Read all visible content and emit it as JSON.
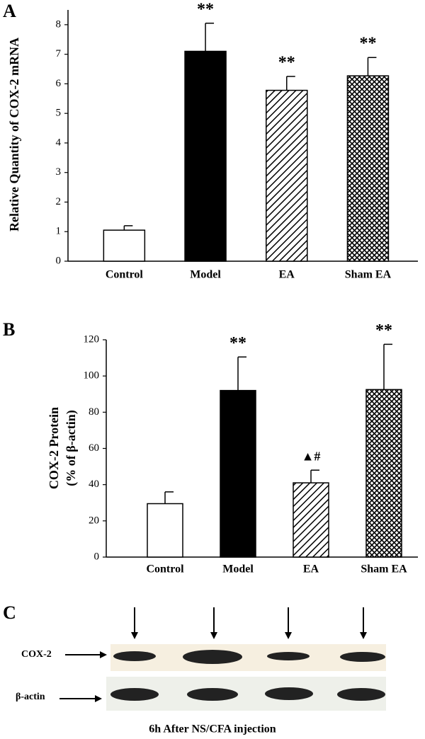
{
  "chart_data": [
    {
      "type": "bar",
      "panel": "A",
      "ylabel": [
        "Relative Quantity of COX-2 mRNA"
      ],
      "categories": [
        "Control",
        "Model",
        "EA",
        "Sham EA"
      ],
      "values": [
        1.05,
        7.1,
        5.78,
        6.27
      ],
      "errors": [
        0.15,
        0.95,
        0.47,
        0.62
      ],
      "annotations": [
        null,
        "**",
        "**",
        "**"
      ],
      "patterns": [
        "white",
        "black",
        "hatch",
        "cross"
      ],
      "ylim": [
        0,
        8.5
      ],
      "yticks": [
        0,
        1,
        2,
        3,
        4,
        5,
        6,
        7,
        8
      ]
    },
    {
      "type": "bar",
      "panel": "B",
      "ylabel": [
        "COX-2 Protein",
        "(% of β-actin)"
      ],
      "categories": [
        "Control",
        "Model",
        "EA",
        "Sham EA"
      ],
      "values": [
        29.5,
        92,
        41,
        92.5
      ],
      "errors": [
        6.5,
        18.5,
        7,
        25
      ],
      "annotations": [
        null,
        "**",
        "▲#",
        "**"
      ],
      "patterns": [
        "white",
        "black",
        "hatch",
        "cross"
      ],
      "ylim": [
        0,
        120
      ],
      "yticks": [
        0,
        20,
        40,
        60,
        80,
        100,
        120
      ]
    }
  ],
  "blot": {
    "panel": "C",
    "rows": [
      "COX-2",
      "β-actin"
    ],
    "caption": "6h After NS/CFA injection"
  }
}
